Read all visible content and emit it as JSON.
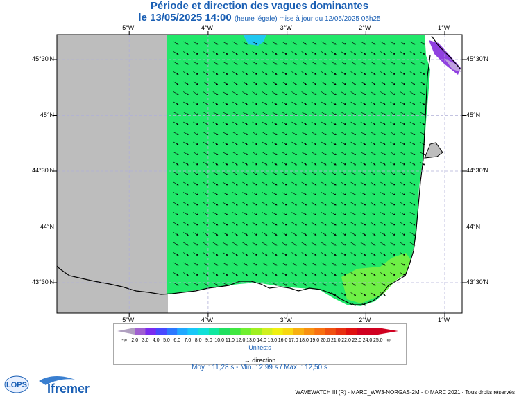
{
  "title": "Période et direction des vagues dominantes",
  "subtitle_main": "le 13/05/2025 14:00",
  "subtitle_note": "(heure légale) mise à jour du 12/05/2025 05h25",
  "lon_ticks": [
    {
      "label": "5°W",
      "lon": -5
    },
    {
      "label": "4°W",
      "lon": -4
    },
    {
      "label": "3°W",
      "lon": -3
    },
    {
      "label": "2°W",
      "lon": -2
    },
    {
      "label": "1°W",
      "lon": -1
    }
  ],
  "lat_ticks": [
    {
      "label": "45°30'N",
      "lat": 45.5
    },
    {
      "label": "45°N",
      "lat": 45.0
    },
    {
      "label": "44°30'N",
      "lat": 44.5
    },
    {
      "label": "44°N",
      "lat": 44.0
    },
    {
      "label": "43°30'N",
      "lat": 43.5
    }
  ],
  "colorbar": {
    "labels": [
      "-∞",
      "2,0",
      "3,0",
      "4,0",
      "5,0",
      "6,0",
      "7,0",
      "8,0",
      "9,0",
      "10,0",
      "11,0",
      "12,0",
      "13,0",
      "14,0",
      "15,0",
      "16,0",
      "17,0",
      "18,0",
      "19,0",
      "20,0",
      "21,0",
      "22,0",
      "23,0",
      "24,0",
      "25,0",
      "∞"
    ],
    "colors": [
      "#b0a0c0",
      "#a060d0",
      "#7a2cf0",
      "#4848ff",
      "#2c78ff",
      "#20a8ff",
      "#18c8f8",
      "#10e0d8",
      "#10e8a0",
      "#20e060",
      "#40e840",
      "#70f030",
      "#a0f020",
      "#d0f020",
      "#f0f010",
      "#f8d810",
      "#f8b010",
      "#f89010",
      "#f87010",
      "#f05010",
      "#e83010",
      "#e01010",
      "#d00020"
    ],
    "units": "Unités:s"
  },
  "direction_label": "direction",
  "stats": "Moy. : 11,28 s   -   Min. : 2,99 s / Max. : 12,50 s",
  "copyright": "WAVEWATCH III (R) - MARC_WW3-NORGAS-2M - © MARC 2021 - Tous droits réservés",
  "logos": {
    "lops": "LOPS",
    "ifremer": "Ifremer"
  },
  "colors": {
    "sea": "#21e86a",
    "land_masked": "#bdbdbd",
    "coast": "#000000",
    "accent": "#1a5fb4"
  },
  "wave_direction": "SE"
}
